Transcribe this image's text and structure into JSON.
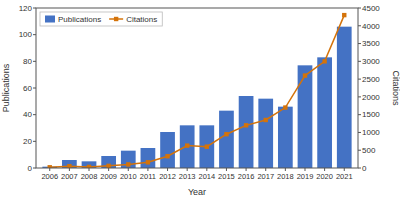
{
  "chart_data": {
    "type": "bar",
    "xlabel": "Year",
    "ylabel": "Publications",
    "y2label": "Citations",
    "x": [
      2006,
      2007,
      2008,
      2009,
      2010,
      2011,
      2012,
      2013,
      2014,
      2015,
      2016,
      2017,
      2018,
      2019,
      2020,
      2021
    ],
    "xlim": [
      2005.3,
      2021.7
    ],
    "xticks": [
      2006,
      2007,
      2008,
      2009,
      2010,
      2011,
      2012,
      2013,
      2014,
      2015,
      2016,
      2017,
      2018,
      2019,
      2020,
      2021
    ],
    "ylim": [
      0,
      120
    ],
    "yticks": [
      0,
      20,
      40,
      60,
      80,
      100,
      120
    ],
    "y2lim": [
      0,
      4500
    ],
    "y2ticks": [
      0,
      500,
      1000,
      1500,
      2000,
      2500,
      3000,
      3500,
      4000,
      4500
    ],
    "grid": false,
    "legend": "upper left",
    "series": [
      {
        "name": "Publications",
        "type": "bar",
        "color": "#4472c4",
        "values": [
          1,
          6,
          5,
          9,
          13,
          15,
          27,
          32,
          32,
          43,
          54,
          52,
          46,
          77,
          83,
          106
        ]
      },
      {
        "name": "Citations",
        "type": "line",
        "axis": "y2",
        "color": "#d4730a",
        "marker": "square",
        "line_style": "solid",
        "values": [
          20,
          50,
          30,
          60,
          100,
          160,
          330,
          630,
          600,
          950,
          1200,
          1350,
          1700,
          2600,
          3000,
          4300
        ]
      }
    ]
  }
}
